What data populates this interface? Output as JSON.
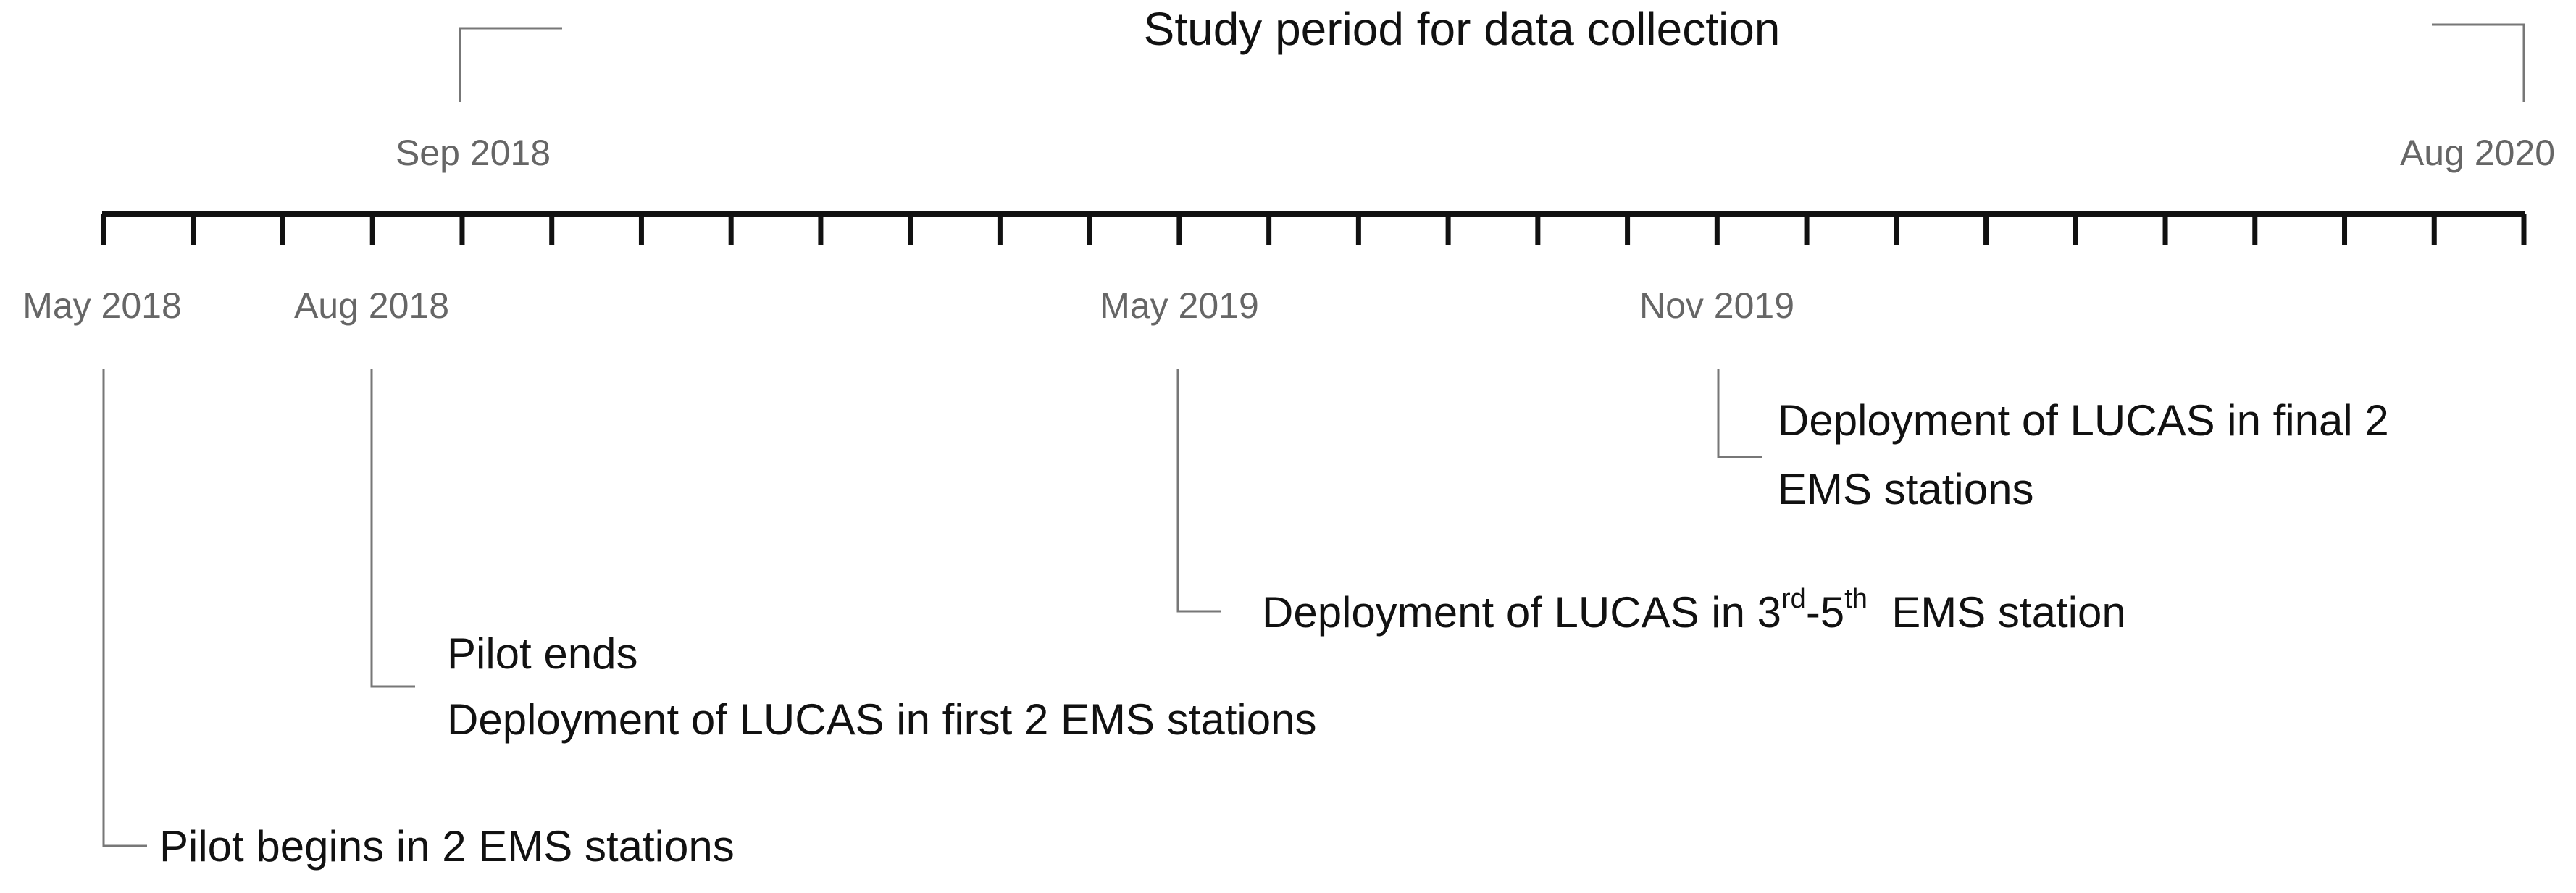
{
  "title": "Study period for data collection",
  "study_period": {
    "start": "Sep 2018",
    "end": "Aug 2020"
  },
  "timeline_labels": [
    "May 2018",
    "Aug 2018",
    "May 2019",
    "Nov 2019"
  ],
  "events": [
    {
      "lines": [
        "Pilot begins in 2 EMS stations"
      ]
    },
    {
      "lines": [
        "Pilot ends",
        "Deployment of LUCAS in first 2 EMS stations"
      ]
    },
    {
      "lines": [
        [
          {
            "text": "Deployment of LUCAS in 3",
            "sup": false
          },
          {
            "text": "rd",
            "sup": true
          },
          {
            "text": "-5",
            "sup": false
          },
          {
            "text": "th",
            "sup": true
          },
          {
            "text": "  EMS station",
            "sup": false
          }
        ]
      ]
    },
    {
      "lines": [
        "Deployment of LUCAS in final 2",
        "EMS stations"
      ]
    }
  ]
}
